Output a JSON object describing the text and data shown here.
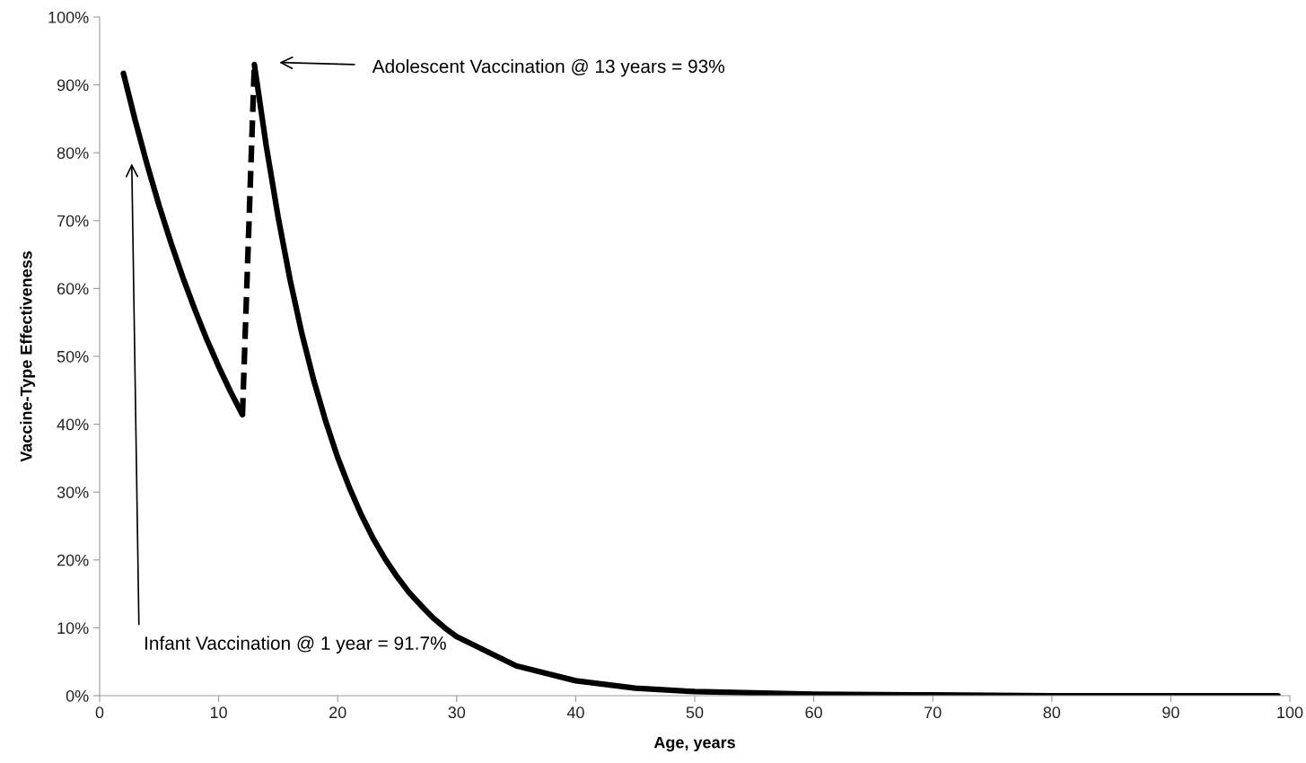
{
  "chart_data": {
    "type": "line",
    "xlabel": "Age, years",
    "ylabel": "Vaccine-Type Effectiveness",
    "xlim": [
      0,
      100
    ],
    "xticks": [
      0,
      10,
      20,
      30,
      40,
      50,
      60,
      70,
      80,
      90,
      100
    ],
    "ylim": [
      0,
      100
    ],
    "yticks": [
      {
        "value": 0,
        "label": "0%"
      },
      {
        "value": 10,
        "label": "10%"
      },
      {
        "value": 20,
        "label": "20%"
      },
      {
        "value": 30,
        "label": "30%"
      },
      {
        "value": 40,
        "label": "40%"
      },
      {
        "value": 50,
        "label": "50%"
      },
      {
        "value": 60,
        "label": "60%"
      },
      {
        "value": 70,
        "label": "70%"
      },
      {
        "value": 80,
        "label": "80%"
      },
      {
        "value": 90,
        "label": "90%"
      },
      {
        "value": 100,
        "label": "100%"
      }
    ],
    "grid": false,
    "legend": false,
    "marker": "none",
    "series": [
      {
        "color": "#000000",
        "line_style": "solid",
        "x": [
          2,
          3,
          4,
          5,
          6,
          7,
          8,
          9,
          10,
          11,
          12
        ],
        "values": [
          91.7,
          84.7,
          78.2,
          72.2,
          66.7,
          61.6,
          56.9,
          52.5,
          48.5,
          44.8,
          41.4
        ]
      },
      {
        "color": "#000000",
        "line_style": "dashed",
        "x": [
          12,
          13
        ],
        "values": [
          41.4,
          93
        ]
      },
      {
        "color": "#000000",
        "line_style": "solid",
        "x": [
          13,
          14,
          15,
          16,
          17,
          18,
          19,
          20,
          21,
          22,
          23,
          24,
          25,
          26,
          27,
          28,
          29,
          30,
          35,
          40,
          45,
          50,
          60,
          70,
          80,
          99
        ],
        "values": [
          93,
          81,
          70.5,
          61.3,
          53.3,
          46.4,
          40.4,
          35.1,
          30.6,
          26.6,
          23.1,
          20.1,
          17.5,
          15.2,
          13.3,
          11.5,
          10.0,
          8.7,
          4.4,
          2.2,
          1.1,
          0.6,
          0.2,
          0.1,
          0.0,
          0.0
        ]
      }
    ],
    "annotations": [
      "Adolescent Vaccination @ 13 years = 93%",
      "Infant Vaccination @ 1 year = 91.7%"
    ]
  }
}
